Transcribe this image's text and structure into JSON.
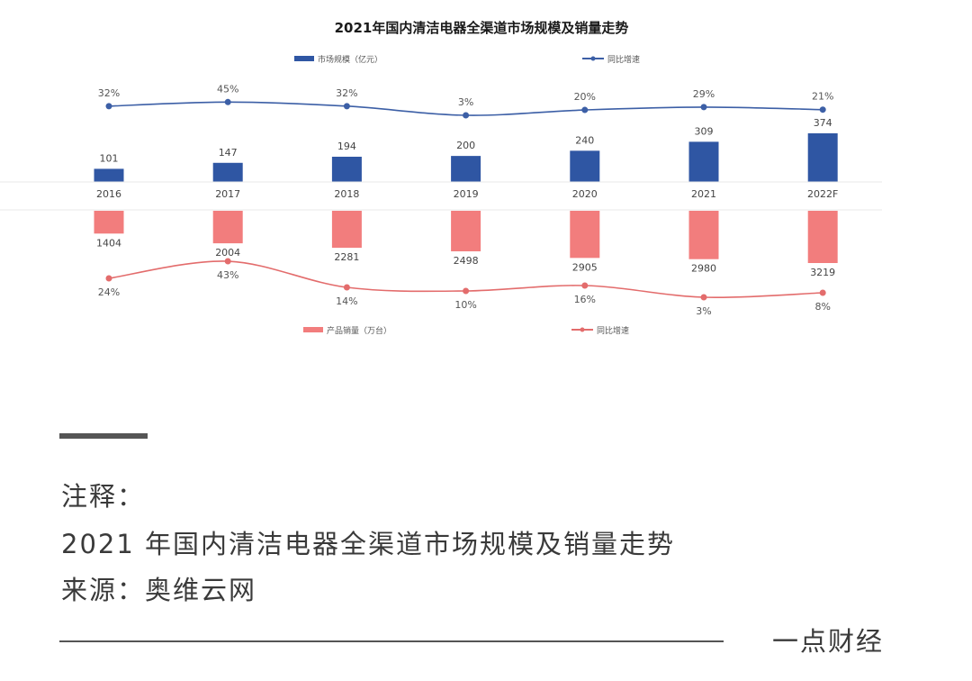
{
  "chart_data": {
    "type": "bar",
    "title": "2021年国内清洁电器全渠道市场规模及销量走势",
    "categories": [
      "2016",
      "2017",
      "2018",
      "2019",
      "2020",
      "2021",
      "2022F"
    ],
    "top": {
      "bar_series": {
        "name": "市场规模（亿元）",
        "values": [
          101,
          147,
          194,
          200,
          240,
          309,
          374
        ],
        "color": "#2f56a3"
      },
      "line_series": {
        "name": "同比增速",
        "values": [
          "32%",
          "45%",
          "32%",
          "3%",
          "20%",
          "29%",
          "21%"
        ],
        "color": "#3c5fa6"
      }
    },
    "bottom": {
      "bar_series": {
        "name": "产品销量（万台）",
        "values": [
          1404,
          2004,
          2281,
          2498,
          2905,
          2980,
          3219
        ],
        "color": "#f27d7d"
      },
      "line_series": {
        "name": "同比增速",
        "values": [
          "24%",
          "43%",
          "14%",
          "10%",
          "16%",
          "3%",
          "8%"
        ],
        "color": "#e36c6c"
      }
    }
  },
  "notes": {
    "heading": "注释：",
    "line1": "2021 年国内清洁电器全渠道市场规模及销量走势",
    "line2": "来源：奥维云网"
  },
  "footer": {
    "brand": "一点财经"
  }
}
